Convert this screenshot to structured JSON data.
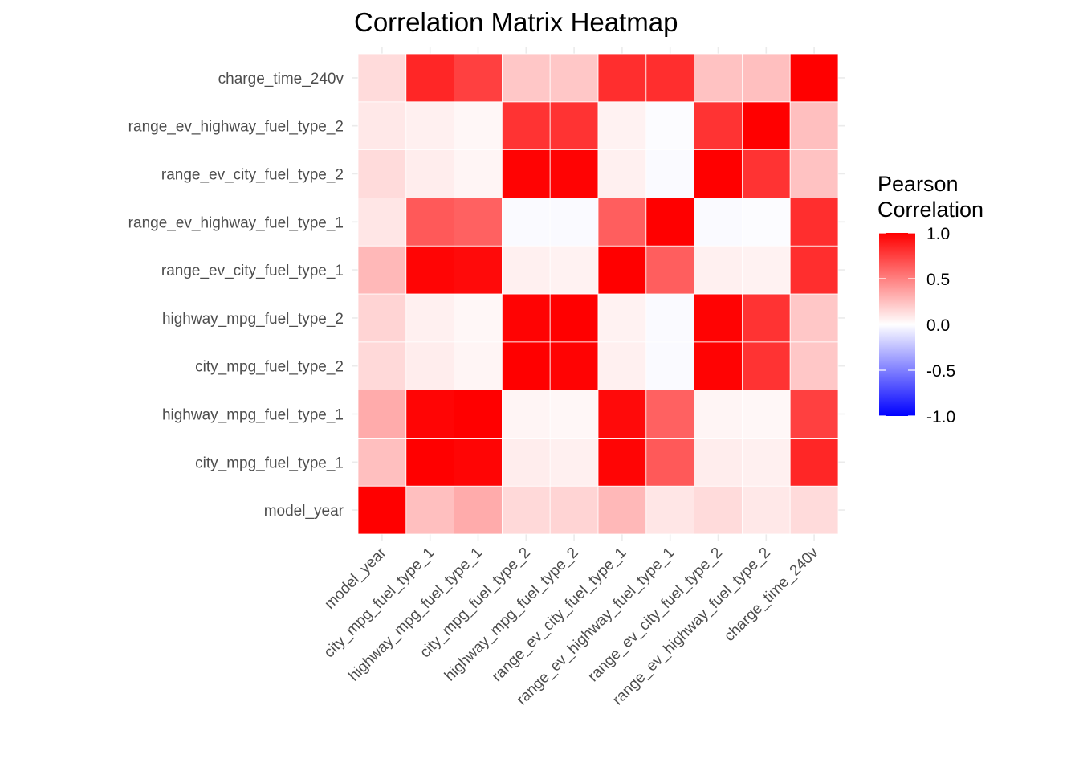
{
  "chart_data": {
    "type": "heatmap",
    "title": "Correlation Matrix Heatmap",
    "xlabel": "",
    "ylabel": "",
    "variables": [
      "model_year",
      "city_mpg_fuel_type_1",
      "highway_mpg_fuel_type_1",
      "city_mpg_fuel_type_2",
      "highway_mpg_fuel_type_2",
      "range_ev_city_fuel_type_1",
      "range_ev_highway_fuel_type_1",
      "range_ev_city_fuel_type_2",
      "range_ev_highway_fuel_type_2",
      "charge_time_240v"
    ],
    "matrix": [
      [
        1.0,
        0.25,
        0.33,
        0.15,
        0.17,
        0.28,
        0.1,
        0.14,
        0.09,
        0.14
      ],
      [
        0.25,
        1.0,
        0.98,
        0.07,
        0.06,
        0.98,
        0.65,
        0.07,
        0.06,
        0.85
      ],
      [
        0.33,
        0.98,
        1.0,
        0.04,
        0.03,
        0.96,
        0.62,
        0.04,
        0.03,
        0.75
      ],
      [
        0.15,
        0.07,
        0.04,
        1.0,
        0.99,
        0.06,
        -0.02,
        0.99,
        0.8,
        0.22
      ],
      [
        0.17,
        0.06,
        0.03,
        0.99,
        1.0,
        0.05,
        -0.02,
        0.99,
        0.8,
        0.22
      ],
      [
        0.28,
        0.98,
        0.96,
        0.06,
        0.05,
        1.0,
        0.63,
        0.06,
        0.05,
        0.82
      ],
      [
        0.1,
        0.65,
        0.62,
        -0.02,
        -0.02,
        0.63,
        1.0,
        -0.02,
        -0.01,
        0.82
      ],
      [
        0.14,
        0.07,
        0.04,
        0.99,
        0.99,
        0.06,
        -0.02,
        1.0,
        0.8,
        0.24
      ],
      [
        0.09,
        0.06,
        0.03,
        0.8,
        0.8,
        0.05,
        -0.01,
        0.8,
        1.0,
        0.25
      ],
      [
        0.14,
        0.85,
        0.75,
        0.22,
        0.22,
        0.82,
        0.82,
        0.24,
        0.25,
        1.0
      ]
    ],
    "color_scale": {
      "low": "#0000ff",
      "mid": "#ffffff",
      "high": "#ff0000",
      "limits": [
        -1.0,
        1.0
      ],
      "midpoint": 0.0
    },
    "legend": {
      "title_lines": [
        "Pearson",
        "Correlation"
      ],
      "breaks": [
        1.0,
        0.5,
        0.0,
        -0.5,
        -1.0
      ],
      "break_labels": [
        "1.0",
        "0.5",
        "0.0",
        "-0.5",
        "-1.0"
      ],
      "position": "right"
    },
    "grid": true,
    "tile_border_color": "#ffffff"
  }
}
